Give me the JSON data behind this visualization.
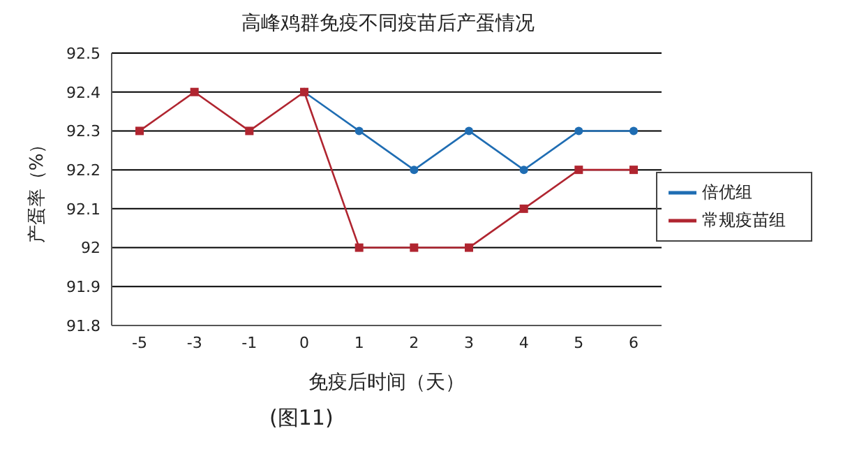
{
  "chart_data": {
    "type": "line",
    "title": "高峰鸡群免疫不同疫苗后产蛋情况",
    "xlabel": "免疫后时间（天）",
    "ylabel": "产蛋率（%）",
    "annotations": [
      "(图11)"
    ],
    "categories": [
      "-5",
      "-3",
      "-1",
      "0",
      "1",
      "2",
      "3",
      "4",
      "5",
      "6"
    ],
    "series": [
      {
        "name": "倍优组",
        "color": "#1f6db3",
        "marker": "circle",
        "values": [
          null,
          null,
          null,
          92.4,
          92.3,
          92.2,
          92.3,
          92.2,
          92.3,
          92.3
        ]
      },
      {
        "name": "常规疫苗组",
        "color": "#b02530",
        "marker": "square",
        "values": [
          92.3,
          92.4,
          92.3,
          92.4,
          92.0,
          92.0,
          92.0,
          92.1,
          92.2,
          92.2
        ]
      }
    ],
    "ylim": [
      91.8,
      92.5
    ],
    "yticks": [
      91.8,
      91.9,
      92,
      92.1,
      92.2,
      92.3,
      92.4,
      92.5
    ],
    "grid": "y",
    "legend": "right",
    "line_style": "solid"
  }
}
